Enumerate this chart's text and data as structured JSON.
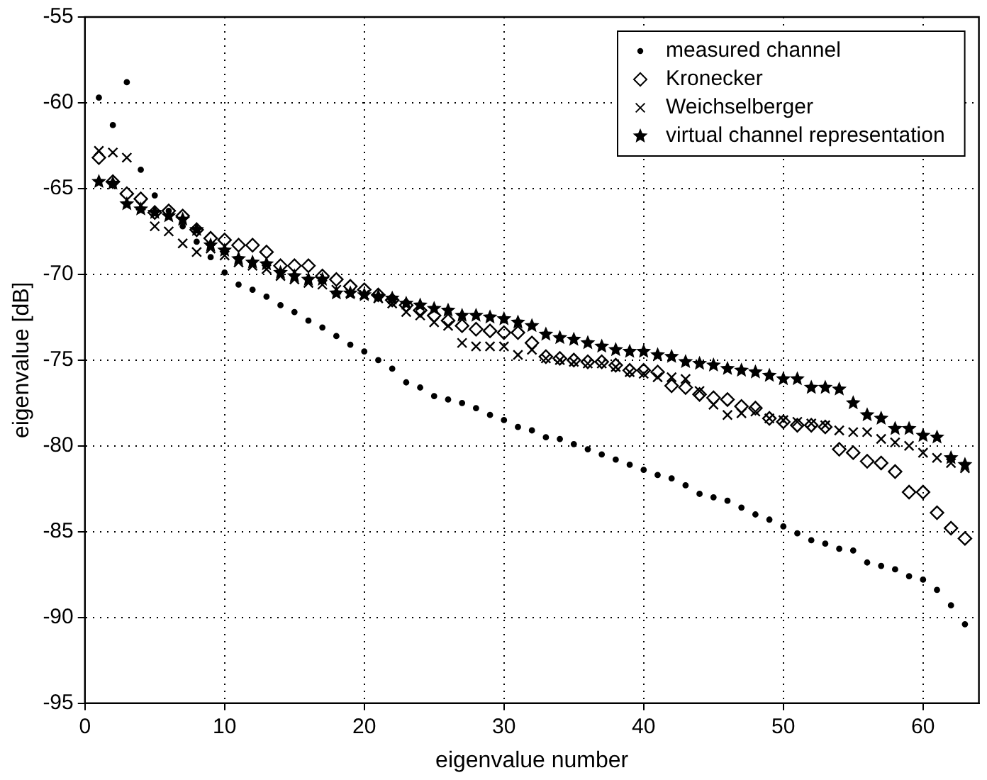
{
  "chart_data": {
    "type": "scatter",
    "xlabel": "eigenvalue number",
    "ylabel": "eigenvalue [dB]",
    "x": [
      1,
      2,
      3,
      4,
      5,
      6,
      7,
      8,
      9,
      10,
      11,
      12,
      13,
      14,
      15,
      16,
      17,
      18,
      19,
      20,
      21,
      22,
      23,
      24,
      25,
      26,
      27,
      28,
      29,
      30,
      31,
      32,
      33,
      34,
      35,
      36,
      37,
      38,
      39,
      40,
      41,
      42,
      43,
      44,
      45,
      46,
      47,
      48,
      49,
      50,
      51,
      52,
      53,
      54,
      55,
      56,
      57,
      58,
      59,
      60,
      61,
      62,
      63
    ],
    "series": [
      {
        "name": "measured channel",
        "color": "#000000",
        "marker": "circle",
        "values": [
          -59.7,
          -61.3,
          -58.8,
          -63.9,
          -65.4,
          -66.3,
          -67.2,
          -68.1,
          -69.0,
          -69.9,
          -70.6,
          -70.9,
          -71.3,
          -71.8,
          -72.2,
          -72.7,
          -73.1,
          -73.6,
          -74.1,
          -74.5,
          -75.0,
          -75.5,
          -76.3,
          -76.6,
          -77.1,
          -77.3,
          -77.5,
          -77.8,
          -78.2,
          -78.5,
          -78.9,
          -79.1,
          -79.5,
          -79.6,
          -79.9,
          -80.2,
          -80.5,
          -80.8,
          -81.1,
          -81.4,
          -81.7,
          -81.9,
          -82.3,
          -82.8,
          -83.0,
          -83.2,
          -83.6,
          -84.0,
          -84.3,
          -84.7,
          -85.1,
          -85.5,
          -85.7,
          -86.0,
          -86.1,
          -86.8,
          -87.0,
          -87.2,
          -87.6,
          -87.8,
          -88.4,
          -89.3,
          -90.4
        ]
      },
      {
        "name": "Kronecker",
        "color": "#000000",
        "marker": "diamond",
        "values": [
          -63.2,
          -64.6,
          -65.3,
          -65.6,
          -66.4,
          -66.3,
          -66.6,
          -67.4,
          -67.9,
          -68.0,
          -68.3,
          -68.3,
          -68.7,
          -69.5,
          -69.5,
          -69.5,
          -70.1,
          -70.3,
          -70.7,
          -70.9,
          -71.2,
          -71.5,
          -71.8,
          -72.1,
          -72.4,
          -72.7,
          -73.0,
          -73.2,
          -73.3,
          -73.4,
          -73.4,
          -74.0,
          -74.8,
          -74.9,
          -75.0,
          -75.1,
          -75.1,
          -75.3,
          -75.6,
          -75.6,
          -75.7,
          -76.5,
          -76.6,
          -77.0,
          -77.2,
          -77.3,
          -77.7,
          -77.8,
          -78.4,
          -78.6,
          -78.8,
          -78.8,
          -78.9,
          -80.2,
          -80.4,
          -80.9,
          -81.0,
          -81.5,
          -82.7,
          -82.7,
          -83.9,
          -84.8,
          -85.4
        ]
      },
      {
        "name": "Weichselberger",
        "color": "#000000",
        "marker": "cross",
        "values": [
          -62.8,
          -62.9,
          -63.2,
          -66.0,
          -67.2,
          -67.5,
          -68.2,
          -68.7,
          -68.5,
          -68.9,
          -69.3,
          -69.5,
          -69.7,
          -70.1,
          -70.3,
          -70.5,
          -70.6,
          -70.9,
          -71.1,
          -71.2,
          -71.4,
          -71.7,
          -72.2,
          -72.4,
          -72.8,
          -73.0,
          -74.0,
          -74.2,
          -74.2,
          -74.2,
          -74.7,
          -74.4,
          -74.9,
          -75.0,
          -75.1,
          -75.2,
          -75.2,
          -75.4,
          -75.7,
          -75.8,
          -76.0,
          -76.0,
          -76.1,
          -76.8,
          -77.6,
          -78.2,
          -78.1,
          -78.0,
          -78.4,
          -78.5,
          -78.6,
          -78.7,
          -78.8,
          -79.1,
          -79.2,
          -79.2,
          -79.6,
          -79.8,
          -80.0,
          -80.4,
          -80.7,
          -81.0,
          -81.3
        ]
      },
      {
        "name": "virtual channel representation",
        "color": "#000000",
        "marker": "star",
        "values": [
          -64.6,
          -64.7,
          -65.9,
          -66.2,
          -66.4,
          -66.6,
          -66.8,
          -67.4,
          -68.3,
          -68.6,
          -69.1,
          -69.3,
          -69.4,
          -69.9,
          -70.1,
          -70.3,
          -70.3,
          -71.1,
          -71.1,
          -71.2,
          -71.3,
          -71.4,
          -71.7,
          -71.8,
          -72.0,
          -72.1,
          -72.4,
          -72.4,
          -72.5,
          -72.6,
          -72.8,
          -73.0,
          -73.5,
          -73.7,
          -73.8,
          -74.0,
          -74.2,
          -74.4,
          -74.5,
          -74.5,
          -74.7,
          -74.8,
          -75.1,
          -75.2,
          -75.3,
          -75.5,
          -75.6,
          -75.7,
          -75.9,
          -76.1,
          -76.1,
          -76.6,
          -76.6,
          -76.7,
          -77.5,
          -78.2,
          -78.4,
          -79.0,
          -79.0,
          -79.4,
          -79.5,
          -80.7,
          -81.1
        ]
      }
    ],
    "xlim": [
      0,
      64
    ],
    "xticks": [
      0,
      10,
      20,
      30,
      40,
      50,
      60
    ],
    "ylim": [
      -95,
      -55
    ],
    "yticks": [
      -95,
      -90,
      -85,
      -80,
      -75,
      -70,
      -65,
      -60,
      -55
    ],
    "grid": true,
    "legend": "top right"
  }
}
